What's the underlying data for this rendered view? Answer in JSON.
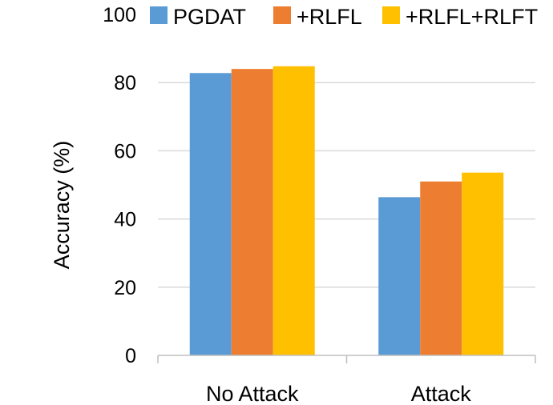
{
  "chart_data": {
    "type": "bar",
    "title": "",
    "xlabel": "",
    "ylabel": "Accuracy  (%)",
    "ylim": [
      0,
      100
    ],
    "yticks": [
      "0",
      "20",
      "40",
      "60",
      "80",
      "100"
    ],
    "categories": [
      "No Attack",
      "Attack"
    ],
    "series": [
      {
        "name": "PGDAT",
        "color": "#5B9BD5",
        "values": [
          82.8,
          46.4
        ]
      },
      {
        "name": "+RLFL",
        "color": "#ED7D31",
        "values": [
          84.0,
          51.0
        ]
      },
      {
        "name": "+RLFL+RLFT",
        "color": "#FFC000",
        "values": [
          84.8,
          53.6
        ]
      }
    ],
    "legend_position": "top",
    "grid": true,
    "gridline_color": "#d9d9d9"
  }
}
